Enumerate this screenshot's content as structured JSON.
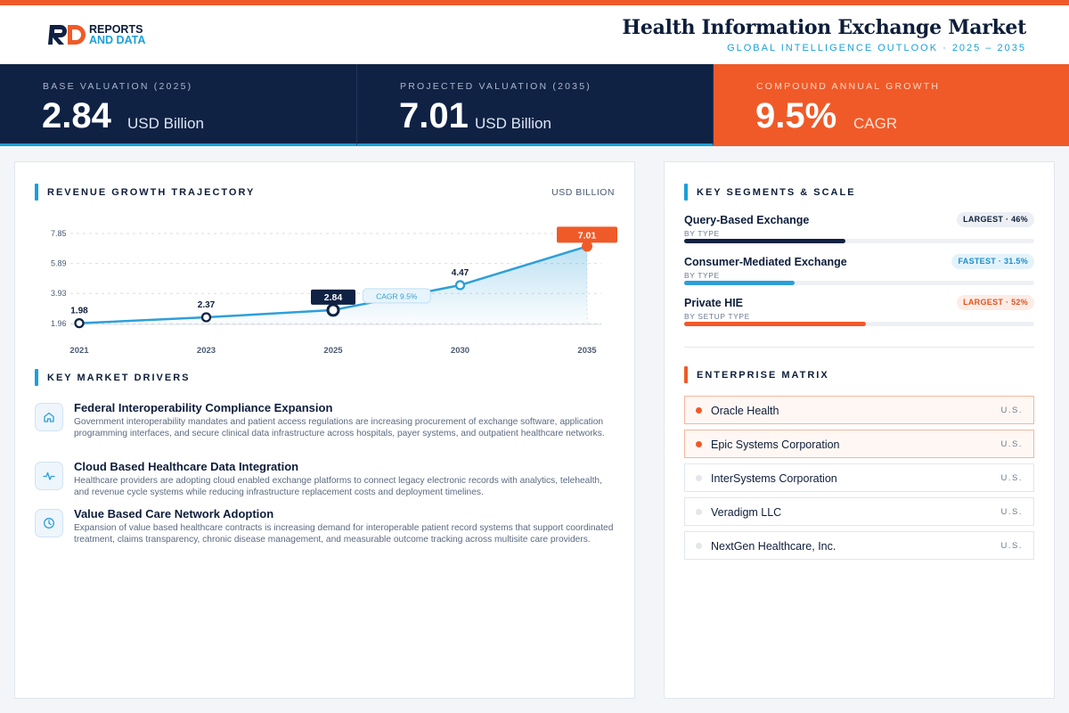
{
  "header": {
    "logo": {
      "line1": "REPORTS",
      "line2": "AND DATA",
      "mark": "RD"
    },
    "title": "Health Information Exchange Market",
    "subtitle": "GLOBAL INTELLIGENCE OUTLOOK · 2025 – 2035"
  },
  "kpis": [
    {
      "label": "BASE VALUATION (2025)",
      "value": "2.84",
      "unit": "USD Billion"
    },
    {
      "label": "PROJECTED VALUATION (2035)",
      "value": "7.01",
      "unit": "USD Billion"
    },
    {
      "label": "COMPOUND ANNUAL GROWTH",
      "value": "9.5%",
      "unit": "CAGR"
    }
  ],
  "revenue": {
    "section_title": "REVENUE GROWTH TRAJECTORY",
    "unit_label": "USD BILLION"
  },
  "chart_data": {
    "type": "area",
    "title": "REVENUE GROWTH TRAJECTORY",
    "ylabel": "USD BILLION",
    "x": [
      "2021",
      "2023",
      "2025",
      "2030",
      "2035"
    ],
    "values": [
      1.98,
      2.37,
      2.84,
      4.47,
      7.01
    ],
    "data_labels": [
      "1.98",
      "2.37",
      "2.84",
      "4.47",
      "7.01"
    ],
    "y_ticks": [
      "7.85",
      "5.89",
      "3.93",
      "1.96"
    ],
    "ylim": [
      1.96,
      7.85
    ],
    "annotation": "CAGR 9.5%",
    "highlight": {
      "base": "2025",
      "projected": "2035"
    },
    "grid": true,
    "colors": {
      "line": "#2e9fd8",
      "highlight": "#f05a28",
      "base": "#0f2244"
    }
  },
  "drivers": {
    "section_title": "KEY MARKET DRIVERS",
    "items": [
      {
        "icon": "building-icon",
        "title": "Federal Interoperability Compliance Expansion",
        "text": "Government interoperability mandates and patient access regulations are increasing procurement of exchange software, application programming interfaces, and secure clinical data infrastructure across hospitals, payer systems, and outpatient healthcare networks."
      },
      {
        "icon": "pulse-icon",
        "title": "Cloud Based Healthcare Data Integration",
        "text": "Healthcare providers are adopting cloud enabled exchange platforms to connect legacy electronic records with analytics, telehealth, and revenue cycle systems while reducing infrastructure replacement costs and deployment timelines."
      },
      {
        "icon": "clock-icon",
        "title": "Value Based Care Network Adoption",
        "text": "Expansion of value based healthcare contracts is increasing demand for interoperable patient record systems that support coordinated treatment, claims transparency, chronic disease management, and measurable outcome tracking across multisite care providers."
      }
    ]
  },
  "segments": {
    "section_title": "KEY SEGMENTS & SCALE",
    "items": [
      {
        "name": "Query-Based Exchange",
        "sub": "BY TYPE",
        "badge": "LARGEST · 46%",
        "share": 0.46,
        "bar_color": "#0f2244",
        "badge_bg": "#eceff4",
        "badge_color": "#0d1d3a"
      },
      {
        "name": "Consumer-Mediated Exchange",
        "sub": "BY TYPE",
        "badge": "FASTEST · 31.5%",
        "share": 0.315,
        "bar_color": "#2e9fd8",
        "badge_bg": "#e4f3fb",
        "badge_color": "#1a8ec9"
      },
      {
        "name": "Private HIE",
        "sub": "BY SETUP TYPE",
        "badge": "LARGEST · 52%",
        "share": 0.52,
        "bar_color": "#f05a28",
        "badge_bg": "#fdece5",
        "badge_color": "#e0531f"
      }
    ]
  },
  "enterprise": {
    "section_title": "ENTERPRISE MATRIX",
    "items": [
      {
        "name": "Oracle Health",
        "country": "U.S.",
        "highlighted": true
      },
      {
        "name": "Epic Systems Corporation",
        "country": "U.S.",
        "highlighted": true
      },
      {
        "name": "InterSystems Corporation",
        "country": "U.S.",
        "highlighted": false
      },
      {
        "name": "Veradigm LLC",
        "country": "U.S.",
        "highlighted": false
      },
      {
        "name": "NextGen Healthcare, Inc.",
        "country": "U.S.",
        "highlighted": false
      }
    ]
  }
}
